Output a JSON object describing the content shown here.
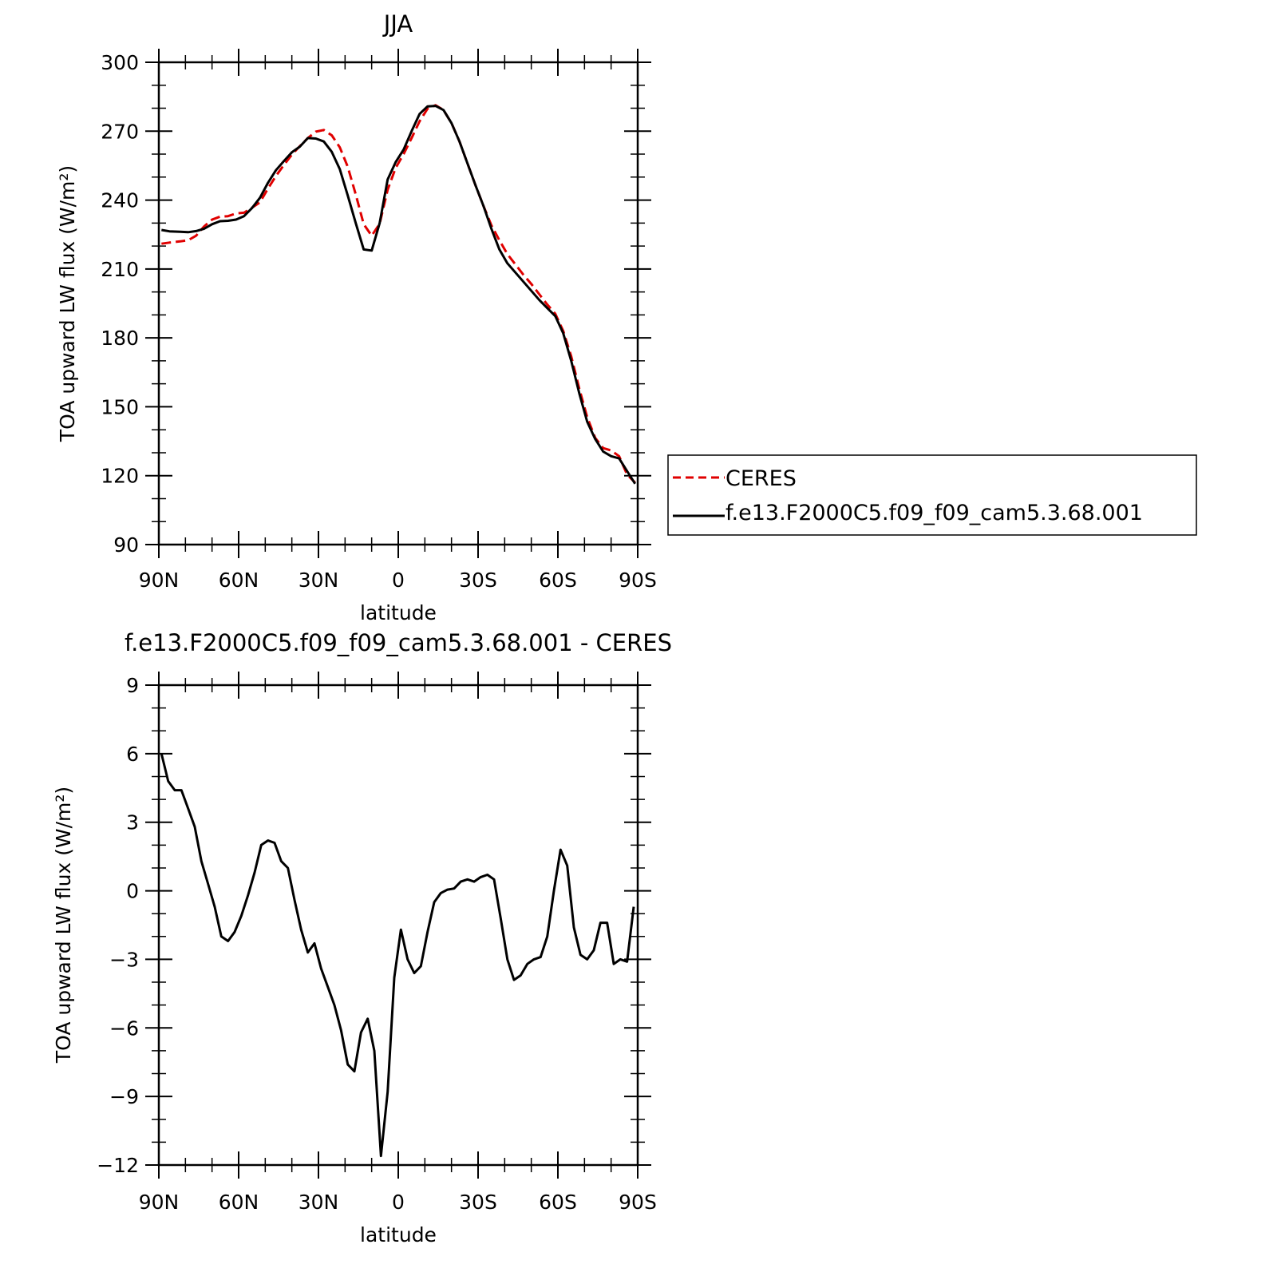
{
  "chart_data": [
    {
      "type": "line",
      "title": "JJA",
      "xlabel": "latitude",
      "ylabel": "TOA upward LW flux (W/m²)",
      "xlim": [
        90,
        -90
      ],
      "ylim": [
        90,
        300
      ],
      "xticks": [
        90,
        60,
        30,
        0,
        -30,
        -60,
        -90
      ],
      "xtick_labels": [
        "90N",
        "60N",
        "30N",
        "0",
        "30S",
        "60S",
        "90S"
      ],
      "yticks": [
        90,
        120,
        150,
        180,
        210,
        240,
        270,
        300
      ],
      "ytick_labels": [
        "90",
        "120",
        "150",
        "180",
        "210",
        "240",
        "270",
        "300"
      ],
      "grid": false,
      "legend": "right",
      "series": [
        {
          "name": "CERES",
          "color": "#e00000",
          "dash": true,
          "x": [
            89,
            86,
            82,
            79,
            76,
            73,
            70,
            67,
            64,
            61,
            58,
            55,
            52,
            49,
            46,
            43,
            40,
            37,
            34,
            31,
            28,
            25,
            22,
            19,
            16,
            13,
            10,
            7,
            4,
            1,
            -2,
            -5,
            -8,
            -11,
            -14,
            -17,
            -20,
            -23,
            -26,
            -29,
            -32,
            -35,
            -38,
            -41,
            -44,
            -47,
            -50,
            -53,
            -56,
            -59,
            -62,
            -65,
            -68,
            -71,
            -74,
            -77,
            -80,
            -83,
            -86,
            -89
          ],
          "values": [
            221,
            221.5,
            222,
            222.5,
            224.5,
            228.5,
            231.5,
            232.8,
            233,
            234.2,
            234.5,
            236.7,
            239,
            245,
            250.5,
            255.3,
            259.8,
            263.5,
            267,
            269.8,
            270.5,
            268.2,
            263,
            254.5,
            242.5,
            229.5,
            224.5,
            229.7,
            244.5,
            254,
            260,
            267,
            274.3,
            279.8,
            281.3,
            279.2,
            273.5,
            265.5,
            256,
            246.5,
            237.5,
            229,
            222.5,
            216.5,
            212,
            207.5,
            203.5,
            199,
            194.5,
            190.5,
            183,
            172,
            158,
            145.5,
            136.5,
            132,
            131,
            128.5,
            120.5,
            117
          ]
        },
        {
          "name": "f.e13.F2000C5.f09_f09_cam5.3.68.001",
          "color": "#000000",
          "dash": false,
          "x": [
            89,
            86,
            82,
            79,
            76,
            73,
            70,
            67,
            64,
            61,
            58,
            55,
            52,
            49,
            46,
            43,
            40,
            37,
            34,
            31,
            28,
            25,
            22,
            19,
            16,
            13,
            10,
            7,
            4,
            1,
            -2,
            -5,
            -8,
            -11,
            -14,
            -17,
            -20,
            -23,
            -26,
            -29,
            -32,
            -35,
            -38,
            -41,
            -44,
            -47,
            -50,
            -53,
            -56,
            -59,
            -62,
            -65,
            -68,
            -71,
            -74,
            -77,
            -80,
            -83,
            -86,
            -89
          ],
          "values": [
            227,
            226.4,
            226.2,
            226,
            226.5,
            227.5,
            229.5,
            230.8,
            231,
            231.5,
            233,
            236.5,
            241,
            247.5,
            253,
            257,
            260.8,
            263.3,
            267,
            266.8,
            265.5,
            261,
            253.5,
            242,
            230,
            218.5,
            218,
            230,
            249,
            256.5,
            262,
            270,
            277.5,
            280.8,
            281,
            279.2,
            273.5,
            265.5,
            256,
            246.5,
            237.5,
            227.5,
            218.5,
            212.5,
            208.5,
            204.5,
            200.5,
            196.5,
            193,
            189.5,
            182,
            170,
            156,
            143.5,
            136,
            130.5,
            128.5,
            127.5,
            122,
            116.5
          ]
        }
      ]
    },
    {
      "type": "line",
      "title": "f.e13.F2000C5.f09_f09_cam5.3.68.001 - CERES",
      "xlabel": "latitude",
      "ylabel": "TOA upward LW flux (W/m²)",
      "xlim": [
        90,
        -90
      ],
      "ylim": [
        -12,
        9
      ],
      "xticks": [
        90,
        60,
        30,
        0,
        -30,
        -60,
        -90
      ],
      "xtick_labels": [
        "90N",
        "60N",
        "30N",
        "0",
        "30S",
        "60S",
        "90S"
      ],
      "yticks": [
        -12,
        -9,
        -6,
        -3,
        0,
        3,
        6,
        9
      ],
      "ytick_labels": [
        "-12",
        "-9",
        "-6",
        "-3",
        "0",
        "3",
        "6",
        "9"
      ],
      "grid": false,
      "series": [
        {
          "name": "f.e13.F2000C5.f09_f09_cam5.3.68.001 - CERES",
          "color": "#000000",
          "dash": false,
          "x": [
            89,
            86.5,
            84,
            81.5,
            79,
            76.5,
            74,
            71.5,
            69,
            66.5,
            64,
            61.5,
            59,
            56.5,
            54,
            51.5,
            49,
            46.5,
            44,
            41.5,
            39,
            36.5,
            34,
            31.5,
            29,
            26.5,
            24,
            21.5,
            19,
            16.5,
            14,
            11.5,
            9,
            6.5,
            4,
            1.5,
            -1,
            -3.5,
            -6,
            -8.5,
            -11,
            -13.5,
            -16,
            -18.5,
            -21,
            -23.5,
            -26,
            -28.5,
            -31,
            -33.5,
            -36,
            -38.5,
            -41,
            -43.5,
            -46,
            -48.5,
            -51,
            -53.5,
            -56,
            -58.5,
            -61,
            -63.5,
            -66,
            -68.5,
            -71,
            -73.5,
            -76,
            -78.5,
            -81,
            -83.5,
            -86,
            -88.5
          ],
          "values": [
            6.0,
            4.8,
            4.4,
            4.4,
            3.6,
            2.8,
            1.3,
            0.3,
            -0.7,
            -2.0,
            -2.2,
            -1.8,
            -1.1,
            -0.2,
            0.8,
            2.0,
            2.2,
            2.1,
            1.3,
            1.0,
            -0.4,
            -1.7,
            -2.7,
            -2.3,
            -3.4,
            -4.2,
            -5.0,
            -6.1,
            -7.6,
            -7.9,
            -6.2,
            -5.6,
            -7.0,
            -11.6,
            -8.8,
            -3.8,
            -1.7,
            -3.0,
            -3.6,
            -3.3,
            -1.8,
            -0.5,
            -0.1,
            0.05,
            0.1,
            0.4,
            0.5,
            0.4,
            0.6,
            0.7,
            0.5,
            -1.2,
            -3.0,
            -3.9,
            -3.7,
            -3.2,
            -3.0,
            -2.9,
            -2.0,
            0.0,
            1.8,
            1.1,
            -1.6,
            -2.8,
            -3.0,
            -2.6,
            -1.4,
            -1.4,
            -3.2,
            -3.0,
            -3.1,
            -0.7
          ]
        }
      ]
    }
  ]
}
